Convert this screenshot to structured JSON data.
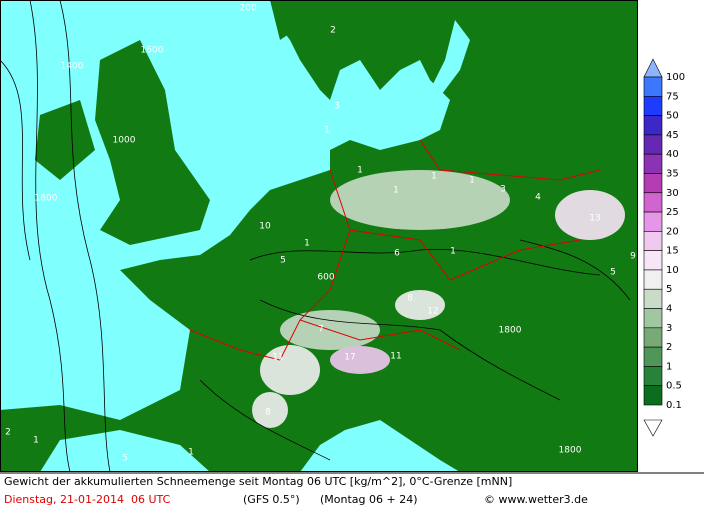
{
  "legend": {
    "entries": [
      {
        "label": 100,
        "color": "#8cb4ff"
      },
      {
        "label": 75,
        "color": "#3c78ff"
      },
      {
        "label": 50,
        "color": "#1e3cff"
      },
      {
        "label": 45,
        "color": "#3c28c8"
      },
      {
        "label": 40,
        "color": "#6428b4"
      },
      {
        "label": 35,
        "color": "#8c32b4"
      },
      {
        "label": 30,
        "color": "#b43cb4"
      },
      {
        "label": 25,
        "color": "#d264d2"
      },
      {
        "label": 20,
        "color": "#e696e6"
      },
      {
        "label": 15,
        "color": "#f0c8f0"
      },
      {
        "label": 10,
        "color": "#f8e6f8"
      },
      {
        "label": 5,
        "color": "#f0f0f0"
      },
      {
        "label": 4,
        "color": "#c8dcc8"
      },
      {
        "label": 3,
        "color": "#a0c8a0"
      },
      {
        "label": 2,
        "color": "#78aa78"
      },
      {
        "label": 1,
        "color": "#50965a"
      },
      {
        "label": 0.5,
        "color": "#28823c"
      },
      {
        "label": 0.1,
        "color": "#0a6e1e"
      }
    ]
  },
  "map_labels": [
    "200",
    "2",
    "1400",
    "1600",
    "3",
    "1",
    "1",
    "1",
    "1",
    "1",
    "3",
    "4",
    "13",
    "10",
    "1",
    "5",
    "6",
    "1",
    "600",
    "8",
    "12",
    "7",
    "11",
    "17",
    "11",
    "8",
    "1800",
    "1800",
    "1000",
    "1800",
    "1",
    "2",
    "5",
    "9",
    "5",
    "1"
  ],
  "footer": {
    "description": "Gewicht der akkumulierten Schneemenge seit Montag 06 UTC [kg/m^2], 0°C-Grenze [mNN]",
    "date": "Dienstag, 21-01-2014  06 UTC",
    "model": "(GFS 0.5°)",
    "run": "(Montag 06 + 24)",
    "credit": "© www.wetter3.de"
  }
}
